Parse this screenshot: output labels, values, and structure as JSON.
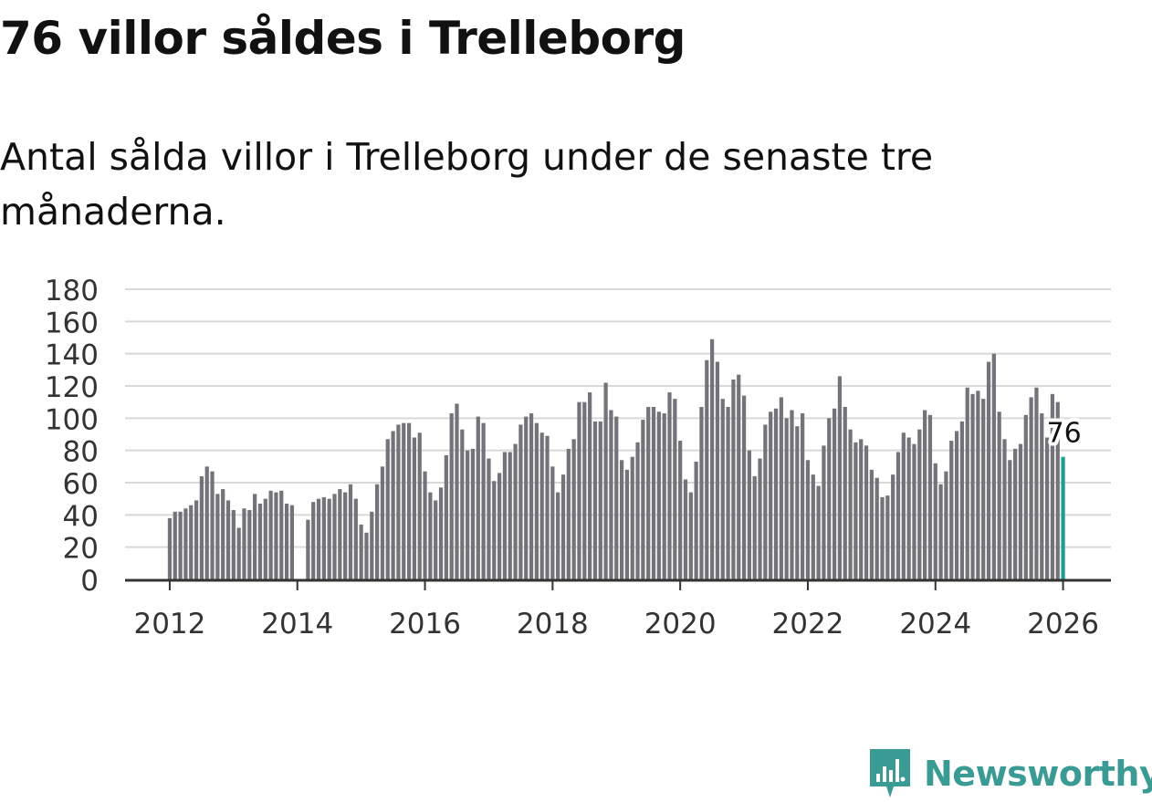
{
  "title": "76 villor såldes i Trelleborg",
  "subtitle": "Antal sålda villor i Trelleborg under de senaste tre månaderna.",
  "brand": {
    "name": "Newsworthy",
    "color": "#3a9b95"
  },
  "colors": {
    "bar": "#74737a",
    "highlight": "#1a9e96",
    "grid": "#d9d9d9",
    "axis": "#333333"
  },
  "chart_data": {
    "type": "bar",
    "title": "",
    "xlabel": "",
    "ylabel": "",
    "ylim": [
      0,
      180
    ],
    "y_ticks": [
      "0",
      "20",
      "40",
      "60",
      "80",
      "100",
      "120",
      "140",
      "160",
      "180"
    ],
    "x_ticks": [
      "2012",
      "2014",
      "2016",
      "2018",
      "2020",
      "2022",
      "2024",
      "2026"
    ],
    "x_tick_years": [
      2012,
      2014,
      2016,
      2018,
      2020,
      2022,
      2024,
      2026
    ],
    "x_range": [
      2011.3,
      2026.75
    ],
    "grid": true,
    "annotation": {
      "label": "76",
      "value": 76
    },
    "series": [
      {
        "name": "Antal sålda villor",
        "start": 2012.0,
        "step_years": 0.0833333,
        "values": [
          38,
          42,
          42,
          44,
          46,
          49,
          64,
          70,
          67,
          53,
          56,
          49,
          43,
          32,
          44,
          43,
          53,
          47,
          50,
          55,
          54,
          55,
          47,
          46,
          null,
          null,
          37,
          48,
          50,
          51,
          50,
          53,
          56,
          54,
          59,
          50,
          34,
          29,
          42,
          59,
          70,
          87,
          92,
          96,
          97,
          97,
          88,
          91,
          67,
          54,
          49,
          57,
          77,
          103,
          109,
          93,
          80,
          81,
          101,
          97,
          75,
          61,
          66,
          79,
          79,
          84,
          96,
          101,
          103,
          97,
          91,
          89,
          70,
          54,
          65,
          81,
          87,
          110,
          110,
          116,
          98,
          98,
          122,
          105,
          101,
          74,
          68,
          76,
          85,
          99,
          107,
          107,
          104,
          103,
          116,
          112,
          86,
          62,
          54,
          73,
          107,
          136,
          149,
          135,
          112,
          107,
          124,
          127,
          114,
          80,
          64,
          75,
          96,
          104,
          106,
          113,
          100,
          105,
          95,
          103,
          74,
          65,
          58,
          83,
          100,
          106,
          126,
          107,
          93,
          85,
          87,
          83,
          68,
          63,
          51,
          52,
          65,
          79,
          91,
          88,
          84,
          93,
          105,
          102,
          72,
          59,
          67,
          86,
          92,
          98,
          119,
          115,
          117,
          112,
          135,
          140,
          104,
          87,
          74,
          81,
          84,
          102,
          113,
          119,
          103,
          88,
          115,
          110,
          76
        ]
      }
    ]
  }
}
